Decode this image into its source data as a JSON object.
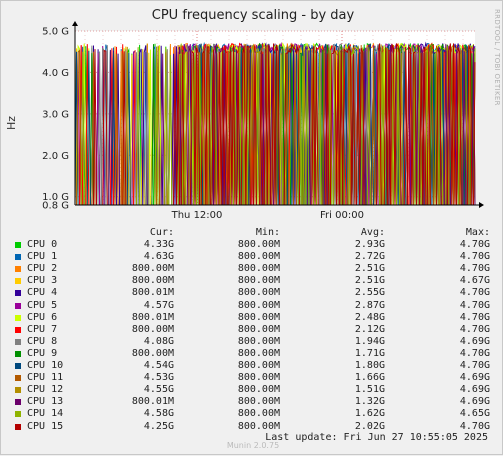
{
  "chart_data": {
    "type": "line",
    "title": "CPU frequency scaling - by day",
    "ylabel": "Hz",
    "y_ticks": [
      "0.8 G",
      "1.0 G",
      "2.0 G",
      "3.0 G",
      "4.0 G",
      "5.0 G"
    ],
    "y_tick_values": [
      800000000,
      1000000000,
      2000000000,
      3000000000,
      4000000000,
      5000000000
    ],
    "ylim": [
      800000000,
      5000000000
    ],
    "x_ticks": [
      "Thu 12:00",
      "Fri 00:00"
    ],
    "grid": true,
    "side_text": "RRDTOOL / TOBI OETIKER",
    "watermark": "Munin 2.0.75",
    "columns": [
      "Cur:",
      "Min:",
      "Avg:",
      "Max:"
    ],
    "series": [
      {
        "name": "CPU 0",
        "color": "#00cc00",
        "cur": "4.33G",
        "min": "800.00M",
        "avg": "2.93G",
        "max": "4.70G"
      },
      {
        "name": "CPU 1",
        "color": "#0066b3",
        "cur": "4.63G",
        "min": "800.00M",
        "avg": "2.72G",
        "max": "4.70G"
      },
      {
        "name": "CPU 2",
        "color": "#ff8000",
        "cur": "800.00M",
        "min": "800.00M",
        "avg": "2.51G",
        "max": "4.70G"
      },
      {
        "name": "CPU 3",
        "color": "#ffcc00",
        "cur": "800.00M",
        "min": "800.00M",
        "avg": "2.51G",
        "max": "4.67G"
      },
      {
        "name": "CPU 4",
        "color": "#330099",
        "cur": "800.01M",
        "min": "800.00M",
        "avg": "2.55G",
        "max": "4.70G"
      },
      {
        "name": "CPU 5",
        "color": "#990099",
        "cur": "4.57G",
        "min": "800.00M",
        "avg": "2.87G",
        "max": "4.70G"
      },
      {
        "name": "CPU 6",
        "color": "#ccff00",
        "cur": "800.01M",
        "min": "800.00M",
        "avg": "2.48G",
        "max": "4.70G"
      },
      {
        "name": "CPU 7",
        "color": "#ff0000",
        "cur": "800.00M",
        "min": "800.00M",
        "avg": "2.12G",
        "max": "4.70G"
      },
      {
        "name": "CPU 8",
        "color": "#808080",
        "cur": "4.08G",
        "min": "800.00M",
        "avg": "1.94G",
        "max": "4.69G"
      },
      {
        "name": "CPU 9",
        "color": "#008f00",
        "cur": "800.00M",
        "min": "800.00M",
        "avg": "1.71G",
        "max": "4.70G"
      },
      {
        "name": "CPU 10",
        "color": "#00487d",
        "cur": "4.54G",
        "min": "800.00M",
        "avg": "1.80G",
        "max": "4.70G"
      },
      {
        "name": "CPU 11",
        "color": "#b35a00",
        "cur": "4.53G",
        "min": "800.00M",
        "avg": "1.66G",
        "max": "4.69G"
      },
      {
        "name": "CPU 12",
        "color": "#b38f00",
        "cur": "4.55G",
        "min": "800.00M",
        "avg": "1.51G",
        "max": "4.69G"
      },
      {
        "name": "CPU 13",
        "color": "#6b006b",
        "cur": "800.01M",
        "min": "800.00M",
        "avg": "1.32G",
        "max": "4.69G"
      },
      {
        "name": "CPU 14",
        "color": "#8fb300",
        "cur": "4.58G",
        "min": "800.00M",
        "avg": "1.62G",
        "max": "4.65G"
      },
      {
        "name": "CPU 15",
        "color": "#b30000",
        "cur": "4.25G",
        "min": "800.00M",
        "avg": "2.02G",
        "max": "4.70G"
      }
    ]
  },
  "last_update": "Last update: Fri Jun 27 10:55:05 2025"
}
